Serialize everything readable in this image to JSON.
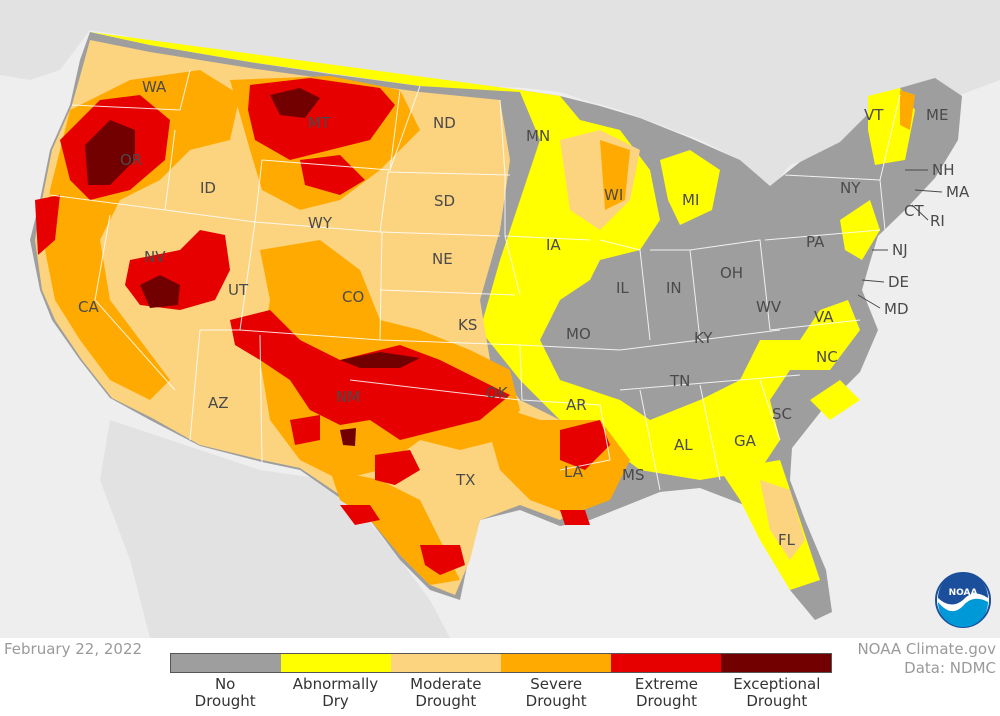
{
  "date": "February 22, 2022",
  "credit": {
    "line1": "NOAA Climate.gov",
    "line2": "Data: NDMC"
  },
  "logo": {
    "text": "NOAA"
  },
  "legend": [
    {
      "line1": "No",
      "line2": "Drought",
      "color": "#9e9e9e"
    },
    {
      "line1": "Abnormally",
      "line2": "Dry",
      "color": "#ffff00"
    },
    {
      "line1": "Moderate",
      "line2": "Drought",
      "color": "#fcd37f"
    },
    {
      "line1": "Severe",
      "line2": "Drought",
      "color": "#ffaa00"
    },
    {
      "line1": "Extreme",
      "line2": "Drought",
      "color": "#e60000"
    },
    {
      "line1": "Exceptional",
      "line2": "Drought",
      "color": "#730000"
    }
  ],
  "states": [
    "WA",
    "OR",
    "CA",
    "ID",
    "NV",
    "MT",
    "WY",
    "UT",
    "AZ",
    "CO",
    "NM",
    "ND",
    "SD",
    "NE",
    "KS",
    "OK",
    "TX",
    "MN",
    "IA",
    "MO",
    "AR",
    "LA",
    "WI",
    "IL",
    "MI",
    "IN",
    "OH",
    "KY",
    "TN",
    "MS",
    "AL",
    "GA",
    "FL",
    "SC",
    "NC",
    "VA",
    "WV",
    "PA",
    "NY",
    "VT",
    "ME",
    "NH",
    "MA",
    "RI",
    "CT",
    "NJ",
    "DE",
    "MD"
  ]
}
